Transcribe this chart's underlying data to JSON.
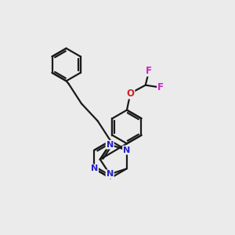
{
  "background_color": "#ebebeb",
  "bond_color": "#1a1a1a",
  "nitrogen_color": "#2222cc",
  "oxygen_color": "#cc2222",
  "fluorine_color": "#cc22cc",
  "line_width": 1.6,
  "figsize": [
    3.0,
    3.0
  ],
  "dpi": 100,
  "xlim": [
    0,
    10
  ],
  "ylim": [
    0,
    10
  ]
}
